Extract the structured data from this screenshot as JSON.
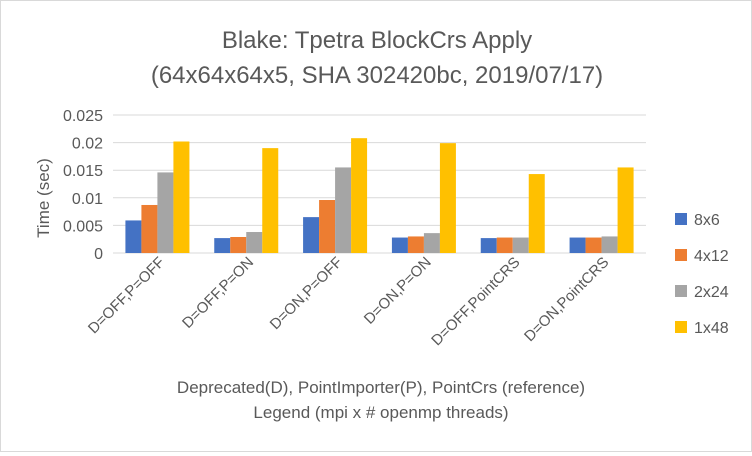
{
  "chart_data": {
    "type": "bar",
    "title": "Blake: Tpetra BlockCrs Apply",
    "subtitle": "(64x64x64x5, SHA 302420bc, 2019/07/17)",
    "xlabel": "Deprecated(D), PointImporter(P), PointCrs (reference)",
    "xlabel2": "Legend (mpi x # openmp threads)",
    "ylabel": "Time (sec)",
    "ylim": [
      0,
      0.025
    ],
    "yticks": [
      "0",
      "0.005",
      "0.01",
      "0.015",
      "0.02",
      "0.025"
    ],
    "grid": true,
    "legend_position": "right",
    "categories": [
      "D=OFF,P=OFF",
      "D=OFF,P=ON",
      "D=ON,P=OFF",
      "D=ON,P=ON",
      "D=OFF,PointCRS",
      "D=ON,PointCRS"
    ],
    "series": [
      {
        "name": "8x6",
        "color": "#4472c4",
        "values": [
          0.0059,
          0.0027,
          0.0065,
          0.0028,
          0.0027,
          0.0028
        ]
      },
      {
        "name": "4x12",
        "color": "#ed7d31",
        "values": [
          0.0087,
          0.0029,
          0.0096,
          0.003,
          0.0028,
          0.0028
        ]
      },
      {
        "name": "2x24",
        "color": "#a5a5a5",
        "values": [
          0.0146,
          0.0038,
          0.0155,
          0.0036,
          0.0028,
          0.003
        ]
      },
      {
        "name": "1x48",
        "color": "#ffc000",
        "values": [
          0.0202,
          0.019,
          0.0208,
          0.0199,
          0.0143,
          0.0155
        ]
      }
    ]
  }
}
